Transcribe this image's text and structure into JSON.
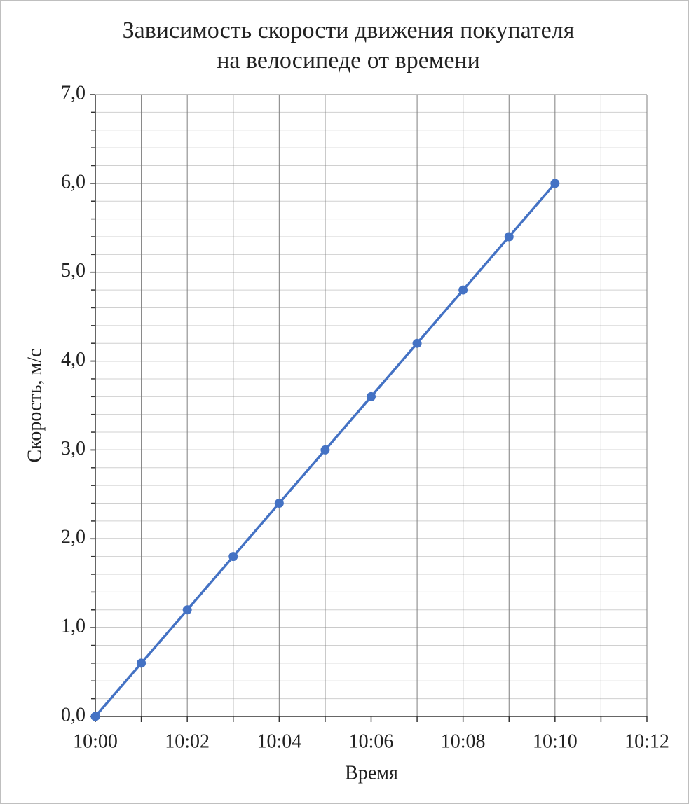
{
  "chart_data": {
    "type": "line",
    "title": [
      "Зависимость скорости движения покупателя",
      "на велосипеде от времени"
    ],
    "x_label": "Время",
    "y_label": "Скорость, м/с",
    "x": [
      "10:00",
      "10:01",
      "10:02",
      "10:03",
      "10:04",
      "10:05",
      "10:06",
      "10:07",
      "10:08",
      "10:09",
      "10:10"
    ],
    "values": [
      0,
      0.6,
      1.2,
      1.8,
      2.4,
      3.0,
      3.6,
      4.2,
      4.8,
      5.4,
      6.0
    ],
    "color": "#4472c4",
    "xlim": [
      "10:00",
      "10:12"
    ],
    "xticks": [
      "10:00",
      "10:02",
      "10:04",
      "10:06",
      "10:08",
      "10:10",
      "10:12"
    ],
    "x_minor_grid": [
      "10:01",
      "10:03",
      "10:05",
      "10:07",
      "10:09",
      "10:11"
    ],
    "ylim": [
      0,
      7
    ],
    "yticks": [
      {
        "value": 0,
        "label": "0,0"
      },
      {
        "value": 1,
        "label": "1,0"
      },
      {
        "value": 2,
        "label": "2,0"
      },
      {
        "value": 3,
        "label": "3,0"
      },
      {
        "value": 4,
        "label": "4,0"
      },
      {
        "value": 5,
        "label": "5,0"
      },
      {
        "value": 6,
        "label": "6,0"
      },
      {
        "value": 7,
        "label": "7,0"
      }
    ],
    "y_minor_step": 0.2,
    "grid": true
  }
}
